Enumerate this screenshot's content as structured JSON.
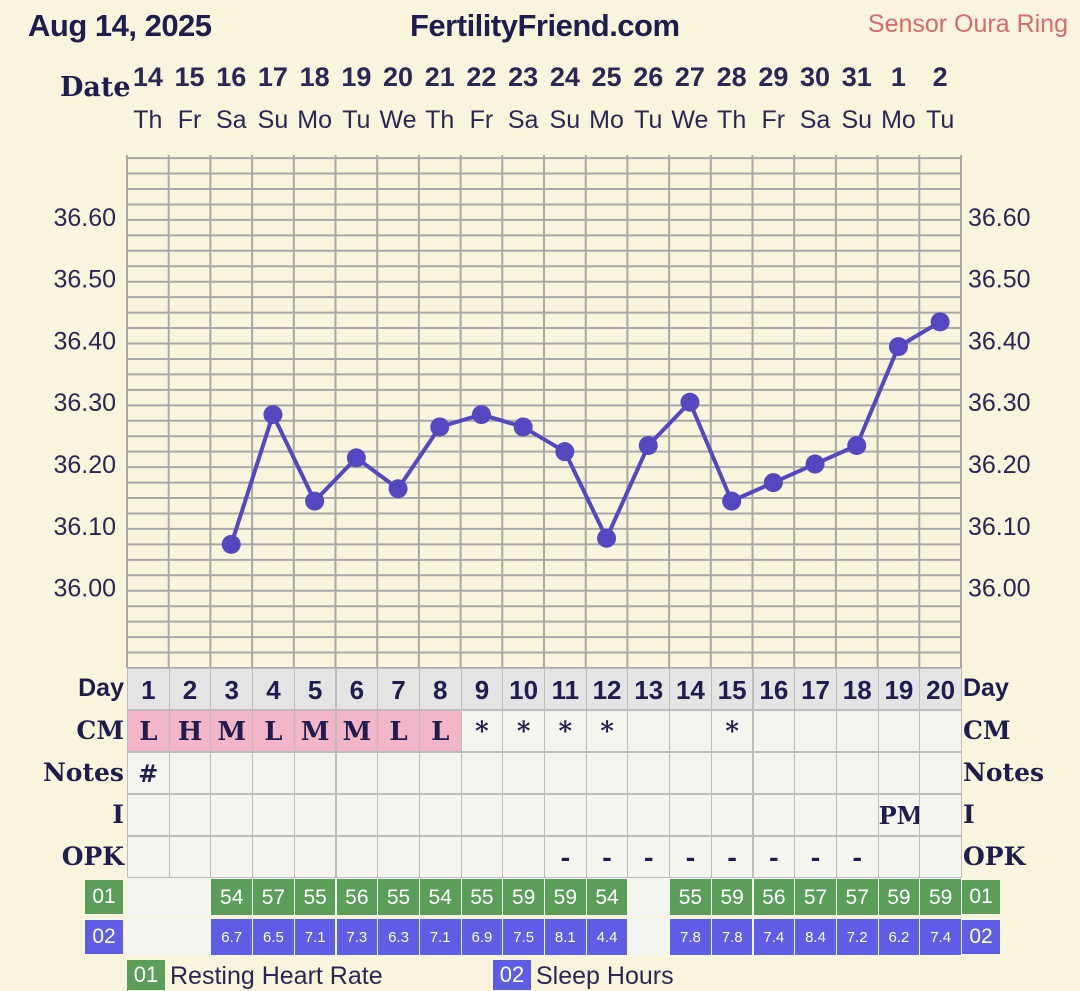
{
  "header": {
    "date": "Aug 14, 2025",
    "site": "FertilityFriend.com",
    "sensor": "Sensor Oura Ring"
  },
  "date_label": "Date",
  "columns": {
    "dates": [
      "14",
      "15",
      "16",
      "17",
      "18",
      "19",
      "20",
      "21",
      "22",
      "23",
      "24",
      "25",
      "26",
      "27",
      "28",
      "29",
      "30",
      "31",
      "1",
      "2"
    ],
    "weekdays": [
      "Th",
      "Fr",
      "Sa",
      "Su",
      "Mo",
      "Tu",
      "We",
      "Th",
      "Fr",
      "Sa",
      "Su",
      "Mo",
      "Tu",
      "We",
      "Th",
      "Fr",
      "Sa",
      "Su",
      "Mo",
      "Tu"
    ],
    "cycle_days": [
      "1",
      "2",
      "3",
      "4",
      "5",
      "6",
      "7",
      "8",
      "9",
      "10",
      "11",
      "12",
      "13",
      "14",
      "15",
      "16",
      "17",
      "18",
      "19",
      "20"
    ]
  },
  "chart_data": {
    "type": "line",
    "x": [
      "14",
      "15",
      "16",
      "17",
      "18",
      "19",
      "20",
      "21",
      "22",
      "23",
      "24",
      "25",
      "26",
      "27",
      "28",
      "29",
      "30",
      "31",
      "1",
      "2"
    ],
    "series": [
      {
        "values": [
          null,
          null,
          36.07,
          36.28,
          36.14,
          36.21,
          36.16,
          36.26,
          36.28,
          36.26,
          36.22,
          36.08,
          36.23,
          36.3,
          36.14,
          36.17,
          36.2,
          36.23,
          36.39,
          36.43
        ]
      }
    ],
    "yticks": [
      "36.00",
      "36.10",
      "36.20",
      "36.30",
      "36.40",
      "36.50",
      "36.60"
    ],
    "ylim": [
      35.87,
      36.7
    ],
    "grid": true,
    "colors": {
      "line": "#5447c0",
      "grid": "#a8a8a8"
    }
  },
  "rows": {
    "day_label": "Day",
    "cm_label": "CM",
    "notes_label": "Notes",
    "i_label": "I",
    "opk_label": "OPK",
    "rhr_label": "01",
    "sleep_label": "02",
    "cm": [
      "L",
      "H",
      "M",
      "L",
      "M",
      "M",
      "L",
      "L",
      "*",
      "*",
      "*",
      "*",
      "",
      "",
      "*",
      "",
      "",
      "",
      "",
      ""
    ],
    "notes": [
      "#",
      "",
      "",
      "",
      "",
      "",
      "",
      "",
      "",
      "",
      "",
      "",
      "",
      "",
      "",
      "",
      "",
      "",
      "",
      ""
    ],
    "i": [
      "",
      "",
      "",
      "",
      "",
      "",
      "",
      "",
      "",
      "",
      "",
      "",
      "",
      "",
      "",
      "",
      "",
      "",
      "PM",
      ""
    ],
    "opk": [
      "",
      "",
      "",
      "",
      "",
      "",
      "",
      "",
      "",
      "",
      "-",
      "-",
      "-",
      "-",
      "-",
      "-",
      "-",
      "-",
      "",
      ""
    ],
    "rhr": [
      "",
      "",
      "54",
      "57",
      "55",
      "56",
      "55",
      "54",
      "55",
      "59",
      "59",
      "54",
      "",
      "55",
      "59",
      "56",
      "57",
      "57",
      "59",
      "59"
    ],
    "sleep": [
      "",
      "",
      "6.7",
      "6.5",
      "7.1",
      "7.3",
      "6.3",
      "7.1",
      "6.9",
      "7.5",
      "8.1",
      "4.4",
      "",
      "7.8",
      "7.8",
      "7.4",
      "8.4",
      "7.2",
      "6.2",
      "7.4"
    ]
  },
  "legend": {
    "rhr_code": "01",
    "rhr_text": "Resting Heart Rate",
    "sleep_code": "02",
    "sleep_text": "Sleep Hours"
  },
  "colors": {
    "cm_fill": "#f2b6c8",
    "rhr_fill": "#5a9e5a",
    "sleep_fill": "#5d5de6",
    "day_row_fill": "#e4e4e4",
    "cell_fill": "#f5f5f0"
  }
}
